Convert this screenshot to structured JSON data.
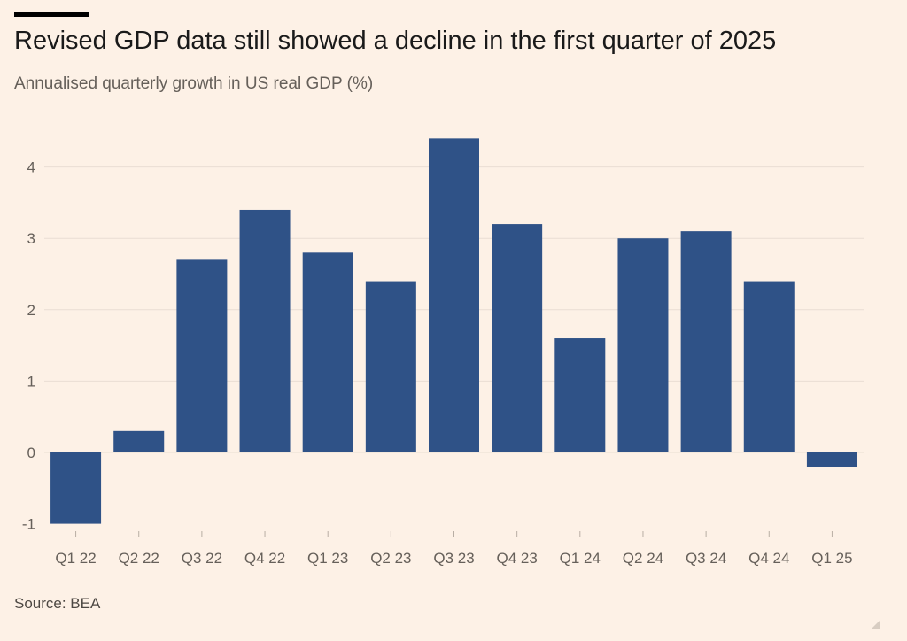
{
  "header": {
    "title": "Revised GDP data still showed a decline in the first quarter of 2025",
    "subtitle": "Annualised quarterly growth in US real GDP (%)"
  },
  "footer": {
    "source": "Source: BEA"
  },
  "colors": {
    "bar": "#2f5287",
    "background": "#fdf1e6",
    "gridline": "#e9ded3",
    "axis_text": "#66605a"
  },
  "chart_data": {
    "type": "bar",
    "title": "Revised GDP data still showed a decline in the first quarter of 2025",
    "subtitle": "Annualised quarterly growth in US real GDP (%)",
    "xlabel": "",
    "ylabel": "",
    "categories": [
      "Q1 22",
      "Q2 22",
      "Q3 22",
      "Q4 22",
      "Q1 23",
      "Q2 23",
      "Q3 23",
      "Q4 23",
      "Q1 24",
      "Q2 24",
      "Q3 24",
      "Q4 24",
      "Q1 25"
    ],
    "values": [
      -1.0,
      0.3,
      2.7,
      3.4,
      2.8,
      2.4,
      4.4,
      3.2,
      1.6,
      3.0,
      3.1,
      2.4,
      -0.2
    ],
    "ylim": [
      -1,
      4.4
    ],
    "yticks": [
      -1,
      0,
      1,
      2,
      3,
      4
    ],
    "grid": true,
    "source": "Source: BEA"
  }
}
